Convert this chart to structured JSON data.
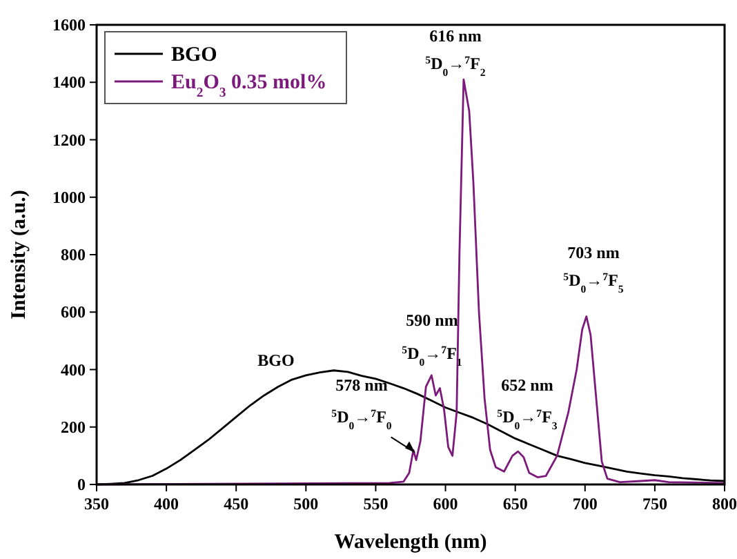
{
  "chart_data": {
    "type": "line",
    "xlabel": "Wavelength (nm)",
    "ylabel": "Intensity (a.u.)",
    "xlim": [
      350,
      800
    ],
    "xticks": [
      350,
      400,
      450,
      500,
      550,
      600,
      650,
      700,
      750,
      800
    ],
    "ylim": [
      0,
      1600
    ],
    "yticks": [
      0,
      200,
      400,
      600,
      800,
      1000,
      1200,
      1400,
      1600
    ],
    "grid": false,
    "legend": "top left",
    "marker": "none",
    "line_style": "solid",
    "series": [
      {
        "name": "BGO",
        "color": "#000000",
        "x": [
          350,
          360,
          370,
          380,
          390,
          400,
          410,
          420,
          430,
          440,
          450,
          460,
          470,
          480,
          490,
          500,
          510,
          520,
          530,
          540,
          550,
          560,
          570,
          580,
          590,
          600,
          610,
          620,
          630,
          640,
          650,
          660,
          670,
          680,
          690,
          700,
          710,
          720,
          730,
          740,
          750,
          760,
          770,
          780,
          790,
          800
        ],
        "values": [
          0,
          2,
          5,
          15,
          30,
          55,
          85,
          120,
          155,
          195,
          235,
          275,
          310,
          340,
          365,
          380,
          390,
          397,
          392,
          378,
          368,
          352,
          335,
          315,
          292,
          268,
          250,
          232,
          210,
          185,
          160,
          140,
          120,
          100,
          88,
          75,
          65,
          55,
          45,
          38,
          32,
          28,
          22,
          18,
          14,
          12
        ]
      },
      {
        "name": "Eu$_{2}$O$_{3}$ 0.35 mol%",
        "color": "#7b1a7b",
        "x": [
          350,
          560,
          570,
          574,
          577,
          579,
          582,
          586,
          590,
          593,
          596,
          599,
          602,
          605,
          608,
          610,
          613,
          617,
          620,
          624,
          628,
          632,
          636,
          642,
          648,
          652,
          656,
          660,
          666,
          672,
          680,
          688,
          694,
          698,
          701,
          704,
          708,
          712,
          716,
          725,
          740,
          750,
          760,
          800
        ],
        "values": [
          0,
          5,
          10,
          40,
          120,
          85,
          150,
          340,
          380,
          310,
          335,
          260,
          130,
          100,
          250,
          800,
          1410,
          1300,
          1050,
          600,
          300,
          120,
          60,
          45,
          100,
          115,
          95,
          40,
          25,
          30,
          100,
          250,
          400,
          540,
          585,
          520,
          300,
          80,
          20,
          8,
          12,
          15,
          8,
          5
        ]
      }
    ],
    "annotations": [
      "BGO",
      "616 nm",
      "$^{5}$D$_{0}$→$^{7}$F$_{2}$",
      "703 nm",
      "$^{5}$D$_{0}$→$^{7}$F$_{5}$",
      "590 nm",
      "$^{5}$D$_{0}$→$^{7}$F$_{1}$",
      "578 nm",
      "$^{5}$D$_{0}$→$^{7}$F$_{0}$",
      "652 nm",
      "$^{5}$D$_{0}$→$^{7}$F$_{3}$"
    ]
  }
}
